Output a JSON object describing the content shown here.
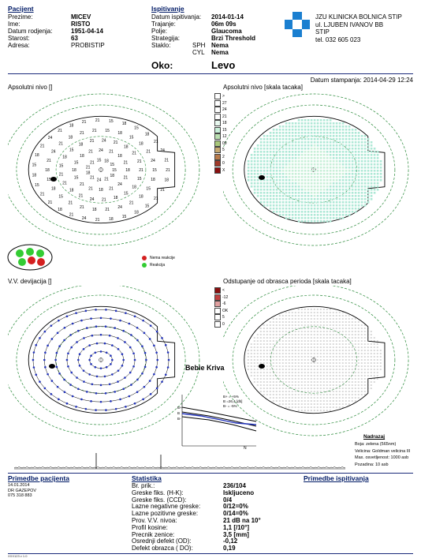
{
  "patient": {
    "section_title": "Pacijent",
    "fields": [
      {
        "label": "Prezime:",
        "value": "MICEV"
      },
      {
        "label": "Ime:",
        "value": "RISTO"
      },
      {
        "label": "Datum rodjenja:",
        "value": "1951-04-14"
      },
      {
        "label": "Starost:",
        "value": "63"
      },
      {
        "label": "Adresa:",
        "value": "PROBISTIP"
      }
    ]
  },
  "exam": {
    "section_title": "Ispitivanje",
    "fields": [
      {
        "label": "Datum ispitivanja:",
        "value": "2014-01-14"
      },
      {
        "label": "Trajanje:",
        "value": "06m 09s"
      },
      {
        "label": "Polje:",
        "value": "Glaucoma"
      },
      {
        "label": "Strategija:",
        "value": "Brzi Threshold"
      },
      {
        "label": "Staklo:",
        "sub": "SPH",
        "value": "Nema"
      },
      {
        "label": "",
        "sub": "CYL",
        "value": "Nema"
      }
    ],
    "eye_label": "Oko:",
    "eye_value": "Levo"
  },
  "clinic": {
    "lines": [
      "JZU KLINICKA BOLNICA STIP",
      "ul. LJUBEN IVANOV BB",
      "STIP",
      "tel. 032 605 023"
    ],
    "logo_color": "#1a7fd0"
  },
  "print_date": "Datum stampanja: 2014-04-29  12:24",
  "plots": {
    "abs_numeric_title": "Apsolutni nivo []",
    "abs_scale_title": "Apsolutni nivo [skala tacaka]",
    "dev_title": "V.V. devijacija []",
    "pattern_title": "Odstupanje od obrasca perioda [skala tacaka]"
  },
  "abs_scale_legend": [
    ">",
    "27",
    "24",
    "21",
    "18",
    "15",
    "12",
    "09",
    "5",
    "2",
    "0",
    "X"
  ],
  "abs_scale_colors": [
    "#ffffff",
    "#ffffff",
    "#ffffff",
    "#ffffff",
    "#e8f8ef",
    "#c8efd8",
    "#b9dfb0",
    "#a8c77a",
    "#c6a870",
    "#b87a4a",
    "#a03a2a",
    "#8a1010"
  ],
  "pattern_legend": [
    "<",
    "-12",
    "-6",
    "OK",
    "5",
    "0"
  ],
  "pattern_colors": [
    "#8a1010",
    "#c04040",
    "#e0a0a0",
    "#ffffff",
    "#ffffff",
    "#ffffff"
  ],
  "fixation_legend": {
    "no_reaction": "Nema reakcije",
    "reaction": "Reakcija"
  },
  "bebie": {
    "title": "Bebie Kriva",
    "legend": [
      "B+ = +5%",
      "B  =26,4 [db]",
      "B-  = -5%"
    ],
    "axis_labels": [
      "B+",
      "B",
      "B-"
    ],
    "x_end": "N"
  },
  "stimulus": {
    "title": "Nadrazaj",
    "lines": [
      "Boja: zelena (565nm)",
      "Velicina: Goldman velicina III",
      "Max. osvetljenost:  1000 asb",
      "Pozadina:  10 asb"
    ]
  },
  "notes_patient": {
    "title": "Primedbe pacijenta",
    "lines": [
      "14.01.2014",
      "DR GAZEPOV",
      "075 318 883"
    ]
  },
  "statistics": {
    "title": "Statistika",
    "rows": [
      {
        "label": "Br. prik.:",
        "value": "236/104"
      },
      {
        "label": "Greske fiks. (H-K):",
        "value": "Iskljuceno"
      },
      {
        "label": "Greske fiks. (CCD):",
        "value": "0/4"
      },
      {
        "label": "Lazne negativne greske:",
        "value": "0/12=0%"
      },
      {
        "label": "Lazne pozitivne greske:",
        "value": "0/14=0%"
      },
      {
        "label": "Prov. V.V. nivoa:",
        "value": "21 dB na 10°"
      },
      {
        "label": "Profil kosine:",
        "value": "1,1 [/10°]"
      },
      {
        "label": "Precnik zenice:",
        "value": "3,5 [mm]"
      },
      {
        "label": "Osrednji defekt (OD):",
        "value": "-0,12"
      },
      {
        "label": "Defekt obrazca ( DO):",
        "value": "0,19"
      }
    ]
  },
  "notes_exam": {
    "title": "Primedbe ispitivanja"
  },
  "footer": "XXX123 v 1.0"
}
